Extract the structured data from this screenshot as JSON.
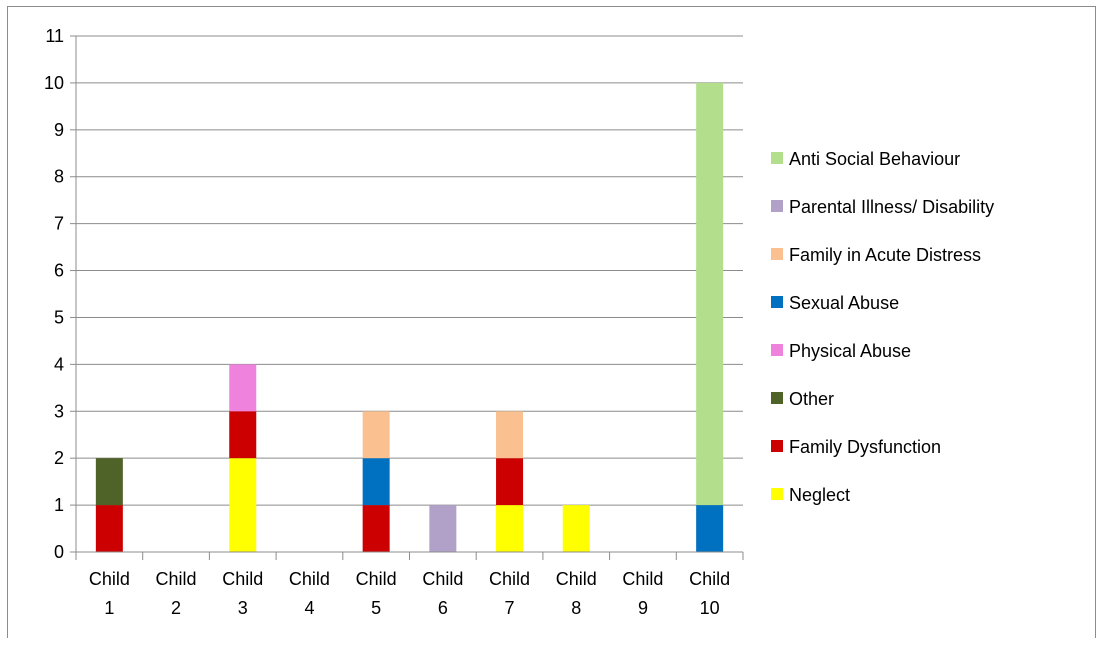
{
  "chart_data": {
    "type": "bar",
    "stacked": true,
    "categories": [
      [
        "Child",
        "1"
      ],
      [
        "Child",
        "2"
      ],
      [
        "Child",
        "3"
      ],
      [
        "Child",
        "4"
      ],
      [
        "Child",
        "5"
      ],
      [
        "Child",
        "6"
      ],
      [
        "Child",
        "7"
      ],
      [
        "Child",
        "8"
      ],
      [
        "Child",
        "9"
      ],
      [
        "Child",
        "10"
      ]
    ],
    "ylim": [
      0,
      11
    ],
    "yticks": [
      0,
      1,
      2,
      3,
      4,
      5,
      6,
      7,
      8,
      9,
      10,
      11
    ],
    "grid": true,
    "legend_position": "right",
    "series": [
      {
        "name": "Neglect",
        "color": "#ffff00",
        "values": [
          0,
          0,
          2,
          0,
          0,
          0,
          1,
          1,
          0,
          0
        ]
      },
      {
        "name": "Family Dysfunction",
        "color": "#cc0000",
        "values": [
          1,
          0,
          1,
          0,
          1,
          0,
          1,
          0,
          0,
          0
        ]
      },
      {
        "name": "Other",
        "color": "#4f6228",
        "values": [
          1,
          0,
          0,
          0,
          0,
          0,
          0,
          0,
          0,
          0
        ]
      },
      {
        "name": "Physical Abuse",
        "color": "#ee82dd",
        "values": [
          0,
          0,
          1,
          0,
          0,
          0,
          0,
          0,
          0,
          0
        ]
      },
      {
        "name": "Sexual Abuse",
        "color": "#0070c0",
        "values": [
          0,
          0,
          0,
          0,
          1,
          0,
          0,
          0,
          0,
          1
        ]
      },
      {
        "name": "Family in Acute Distress",
        "color": "#fac090",
        "values": [
          0,
          0,
          0,
          0,
          1,
          0,
          1,
          0,
          0,
          0
        ]
      },
      {
        "name": "Parental Illness/ Disability",
        "color": "#b1a0c7",
        "values": [
          0,
          0,
          0,
          0,
          0,
          1,
          0,
          0,
          0,
          0
        ]
      },
      {
        "name": "Anti Social Behaviour",
        "color": "#b3de8c",
        "values": [
          0,
          0,
          0,
          0,
          0,
          0,
          0,
          0,
          0,
          9
        ]
      }
    ]
  }
}
